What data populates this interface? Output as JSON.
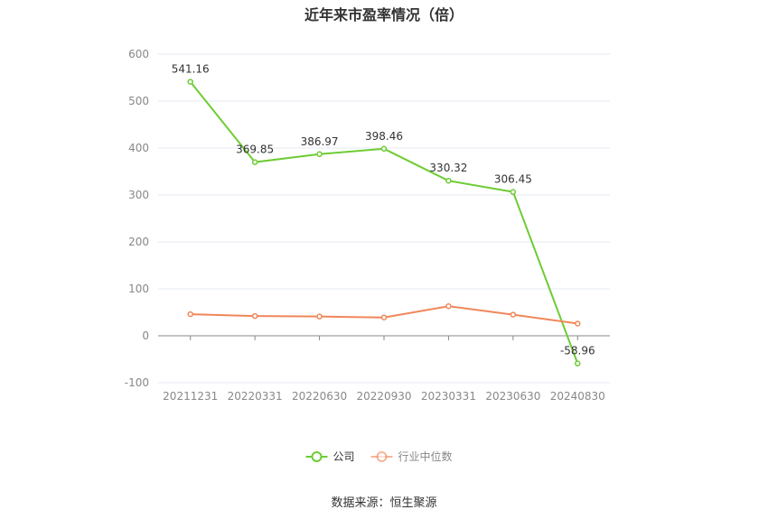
{
  "chart_data": {
    "type": "line",
    "title": "近年来市盈率情况（倍）",
    "categories": [
      "20211231",
      "20220331",
      "20220630",
      "20220930",
      "20230331",
      "20230630",
      "20240830"
    ],
    "series": [
      {
        "name": "公司",
        "values": [
          541.16,
          369.85,
          386.97,
          398.46,
          330.32,
          306.45,
          -58.96
        ],
        "color": "#6dcc34",
        "labels": [
          "541.16",
          "369.85",
          "386.97",
          "398.46",
          "330.32",
          "306.45",
          "-58.96"
        ]
      },
      {
        "name": "行业中位数",
        "values": [
          46,
          42,
          41,
          39,
          63,
          45,
          26
        ],
        "color": "#f0875a"
      }
    ],
    "ylim": [
      -100,
      600
    ],
    "yticks": [
      "600",
      "500",
      "400",
      "300",
      "200",
      "100",
      "0",
      "-100"
    ],
    "ytick_values": [
      600,
      500,
      400,
      300,
      200,
      100,
      0,
      -100
    ],
    "grid": true,
    "legend_position": "bottom-center"
  },
  "source": "数据来源：恒生聚源"
}
